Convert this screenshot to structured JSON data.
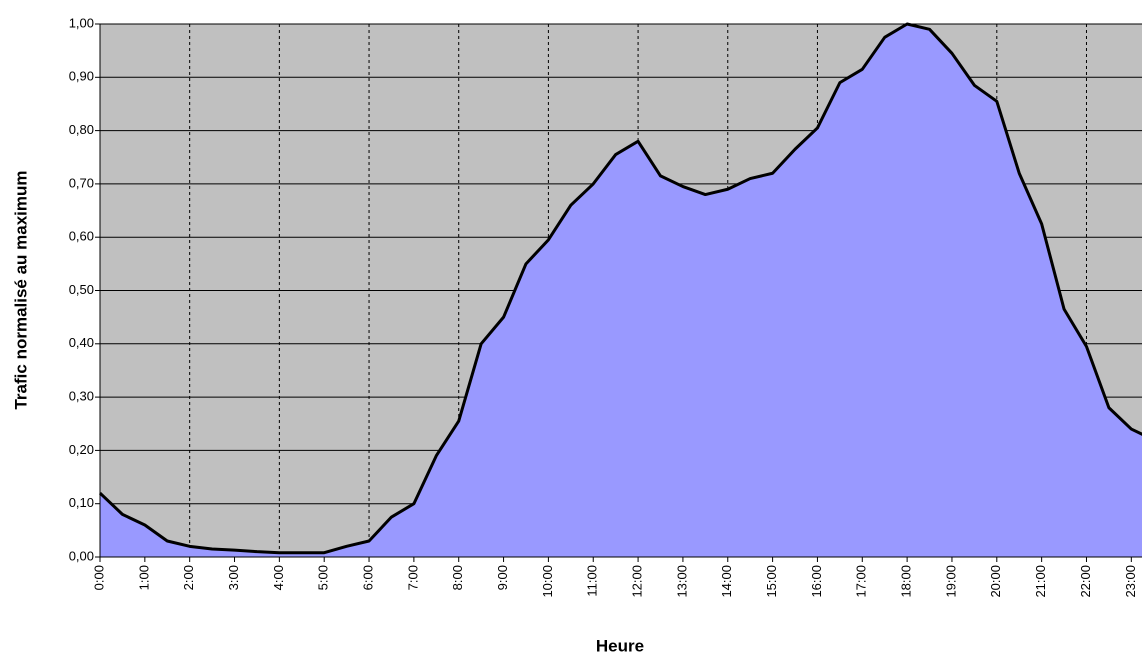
{
  "chart_data": {
    "type": "area",
    "x_label": "Heure",
    "y_label": "Trafic normalisé au maximum",
    "categories": [
      "0:00",
      null,
      "1:00",
      null,
      "2:00",
      null,
      "3:00",
      null,
      "4:00",
      null,
      "5:00",
      null,
      "6:00",
      null,
      "7:00",
      null,
      "8:00",
      null,
      "9:00",
      null,
      "10:00",
      null,
      "11:00",
      null,
      "12:00",
      null,
      "13:00",
      null,
      "14:00",
      null,
      "15:00",
      null,
      "16:00",
      null,
      "17:00",
      null,
      "18:00",
      null,
      "19:00",
      null,
      "20:00",
      null,
      "21:00",
      null,
      "22:00",
      null,
      "23:00",
      null
    ],
    "values": [
      0.12,
      0.08,
      0.06,
      0.03,
      0.02,
      0.015,
      0.013,
      0.01,
      0.008,
      0.008,
      0.008,
      0.02,
      0.03,
      0.075,
      0.1,
      0.19,
      0.255,
      0.4,
      0.45,
      0.55,
      0.595,
      0.66,
      0.7,
      0.755,
      0.78,
      0.715,
      0.695,
      0.68,
      0.69,
      0.71,
      0.72,
      0.765,
      0.805,
      0.89,
      0.915,
      0.975,
      1.0,
      0.99,
      0.945,
      0.885,
      0.855,
      0.72,
      0.625,
      0.465,
      0.395,
      0.28,
      0.24,
      0.22
    ],
    "color": "#9999ff",
    "line_color": "#000000",
    "background": "#c0c0c0",
    "ylim": [
      0,
      1
    ],
    "yticks": [
      {
        "value": 0,
        "label": "0,00"
      },
      {
        "value": 0.1,
        "label": "0,10"
      },
      {
        "value": 0.2,
        "label": "0,20"
      },
      {
        "value": 0.3,
        "label": "0,30"
      },
      {
        "value": 0.4,
        "label": "0,40"
      },
      {
        "value": 0.5,
        "label": "0,50"
      },
      {
        "value": 0.6,
        "label": "0,60"
      },
      {
        "value": 0.7,
        "label": "0,70"
      },
      {
        "value": 0.8,
        "label": "0,80"
      },
      {
        "value": 0.9,
        "label": "0,90"
      },
      {
        "value": 1,
        "label": "1,00"
      }
    ],
    "grid": true
  }
}
